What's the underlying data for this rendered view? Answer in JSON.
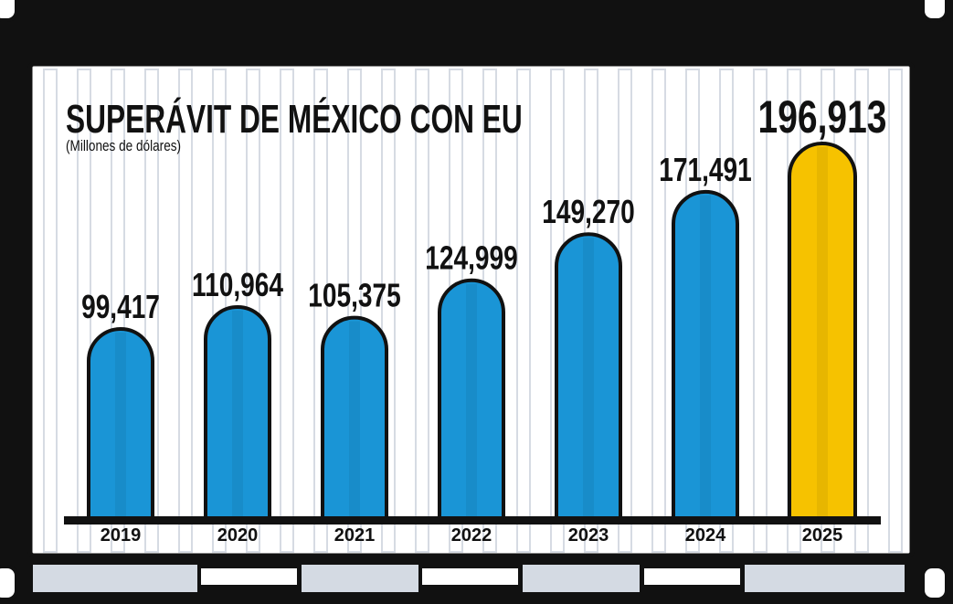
{
  "chart_data": {
    "type": "bar",
    "title": "SUPERÁVIT DE MÉXICO CON EU",
    "subtitle": "(Millones de dólares)",
    "categories": [
      "2019",
      "2020",
      "2021",
      "2022",
      "2023",
      "2024",
      "2025"
    ],
    "values": [
      99417,
      110964,
      105375,
      124999,
      149270,
      171491,
      196913
    ],
    "value_labels": [
      "99,417",
      "110,964",
      "105,375",
      "124,999",
      "149,270",
      "171,491",
      "196,913"
    ],
    "colors": [
      "#1a95d6",
      "#1a95d6",
      "#1a95d6",
      "#1a95d6",
      "#1a95d6",
      "#1a95d6",
      "#f6c200"
    ]
  }
}
